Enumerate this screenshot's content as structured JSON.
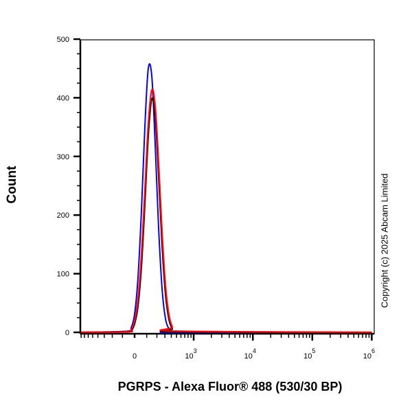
{
  "chart_data": {
    "type": "line",
    "title": "",
    "xlabel": "PGRPS - Alexa Fluor® 488 (530/30 BP)",
    "ylabel": "Count",
    "x_scale": "biexponential",
    "xlim": [
      -800,
      1000000
    ],
    "ylim": [
      0,
      500
    ],
    "y_ticks": [
      0,
      100,
      200,
      300,
      400,
      500
    ],
    "x_ticks": [
      {
        "base": "0",
        "exp": ""
      },
      {
        "base": "10",
        "exp": "3"
      },
      {
        "base": "10",
        "exp": "4"
      },
      {
        "base": "10",
        "exp": "5"
      },
      {
        "base": "10",
        "exp": "6"
      }
    ],
    "grid": false,
    "x": [
      -800,
      -55,
      -27,
      0,
      27,
      55,
      84,
      114,
      147,
      181,
      219,
      261,
      307,
      360,
      419,
      484,
      1000000
    ],
    "series": [
      {
        "color": "#0000ff",
        "values": [
          0,
          2,
          8,
          31,
          93,
          207,
          351,
          450,
          437,
          322,
          180,
          76,
          24,
          6,
          1,
          0,
          0
        ]
      },
      {
        "color": "#000000",
        "values": [
          0,
          1,
          3,
          14,
          44,
          111,
          218,
          334,
          398,
          369,
          267,
          150,
          66,
          22,
          6,
          1,
          0
        ]
      },
      {
        "color": "#ff0000",
        "values": [
          0,
          1,
          5,
          19,
          56,
          130,
          240,
          353,
          413,
          386,
          288,
          171,
          81,
          30,
          9,
          2,
          0
        ]
      }
    ]
  },
  "copyright": "Copyright (c) 2025 Abcam Limited"
}
